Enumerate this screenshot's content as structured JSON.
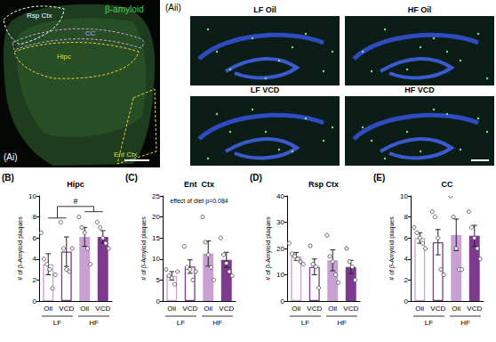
{
  "image_panels": {
    "Ai": {
      "panel": "(Ai)",
      "stain": "β-amyloid",
      "regions": [
        "Rsp Ctx",
        "CC",
        "Hipc",
        "Ent Ctx"
      ]
    },
    "Aii": {
      "panel": "(Aii)",
      "images": [
        "LF Oil",
        "HF Oil",
        "LF VCD",
        "HF VCD"
      ]
    }
  },
  "chart_data": [
    {
      "type": "bar",
      "panel": "(B)",
      "title": "Hipc",
      "y_label": "# of β-Amyloid plaques",
      "categories": [
        "Oil",
        "VCD",
        "Oil",
        "VCD"
      ],
      "group_labels": [
        "LF",
        "HF"
      ],
      "values": [
        3.5,
        4.7,
        6.1,
        6.1
      ],
      "errors": [
        1.0,
        1.4,
        0.9,
        0.6
      ],
      "points": [
        [
          6.5,
          4,
          3.5,
          3,
          1.2,
          2.5
        ],
        [
          7.5,
          5,
          3,
          2.8,
          5
        ],
        [
          8,
          7,
          6.5,
          5,
          3.5
        ],
        [
          7.5,
          7,
          6,
          5.5,
          5
        ]
      ],
      "colors": [
        "#ffffff",
        "#ffffff",
        "#c9a0d3",
        "#7d3a8e"
      ],
      "ylim": [
        0,
        10
      ],
      "yticks": [
        0,
        2,
        4,
        6,
        8,
        10
      ],
      "annotation": "#"
    },
    {
      "type": "bar",
      "panel": "(C)",
      "title": "Ent  Ctx",
      "y_label": "# of β-Amyloid plaques",
      "categories": [
        "Oil",
        "VCD",
        "Oil",
        "VCD"
      ],
      "group_labels": [
        "LF",
        "HF"
      ],
      "values": [
        6,
        8.2,
        11.3,
        9.8
      ],
      "errors": [
        1,
        1.6,
        3,
        1.8
      ],
      "points": [
        [
          7.5,
          6,
          5.5,
          4,
          7
        ],
        [
          13,
          8,
          7.5,
          5,
          7
        ],
        [
          20,
          14,
          11,
          8,
          5
        ],
        [
          15,
          11,
          9,
          7,
          6
        ]
      ],
      "colors": [
        "#ffffff",
        "#ffffff",
        "#c9a0d3",
        "#7d3a8e"
      ],
      "ylim": [
        0,
        25
      ],
      "yticks": [
        0,
        5,
        10,
        15,
        20,
        25
      ],
      "annotation": "effect of diet p=0.084"
    },
    {
      "type": "bar",
      "panel": "(D)",
      "title": "Rsp Ctx",
      "y_label": "# of β-Amyloid plaques",
      "categories": [
        "Oil",
        "VCD",
        "Oil",
        "VCD"
      ],
      "group_labels": [
        "LF",
        "HF"
      ],
      "values": [
        17,
        13,
        15.5,
        13
      ],
      "errors": [
        1.5,
        3,
        4,
        2.5
      ],
      "points": [
        [
          22,
          18,
          17,
          16,
          15,
          14
        ],
        [
          21,
          14,
          13,
          5
        ],
        [
          25,
          17,
          15,
          10,
          7
        ],
        [
          20,
          15,
          13,
          8
        ]
      ],
      "colors": [
        "#ffffff",
        "#ffffff",
        "#c9a0d3",
        "#7d3a8e"
      ],
      "ylim": [
        0,
        40
      ],
      "yticks": [
        0,
        10,
        20,
        30,
        40
      ]
    },
    {
      "type": "bar",
      "panel": "(E)",
      "title": "CC",
      "y_label": "# of β-Amyloid plaques",
      "categories": [
        "Oil",
        "VCD",
        "Oil",
        "VCD"
      ],
      "group_labels": [
        "LF",
        "HF"
      ],
      "values": [
        6.0,
        5.6,
        6.3,
        6.2
      ],
      "errors": [
        0.5,
        1.2,
        1.5,
        1.0
      ],
      "points": [
        [
          7,
          6.5,
          6,
          5.5,
          5
        ],
        [
          8.5,
          8,
          6,
          3,
          2.5
        ],
        [
          10,
          8,
          5,
          3,
          3
        ],
        [
          8.5,
          7,
          6,
          5,
          4
        ]
      ],
      "colors": [
        "#ffffff",
        "#ffffff",
        "#c9a0d3",
        "#7d3a8e"
      ],
      "ylim": [
        0,
        10
      ],
      "yticks": [
        0,
        2,
        4,
        6,
        8,
        10
      ]
    }
  ]
}
